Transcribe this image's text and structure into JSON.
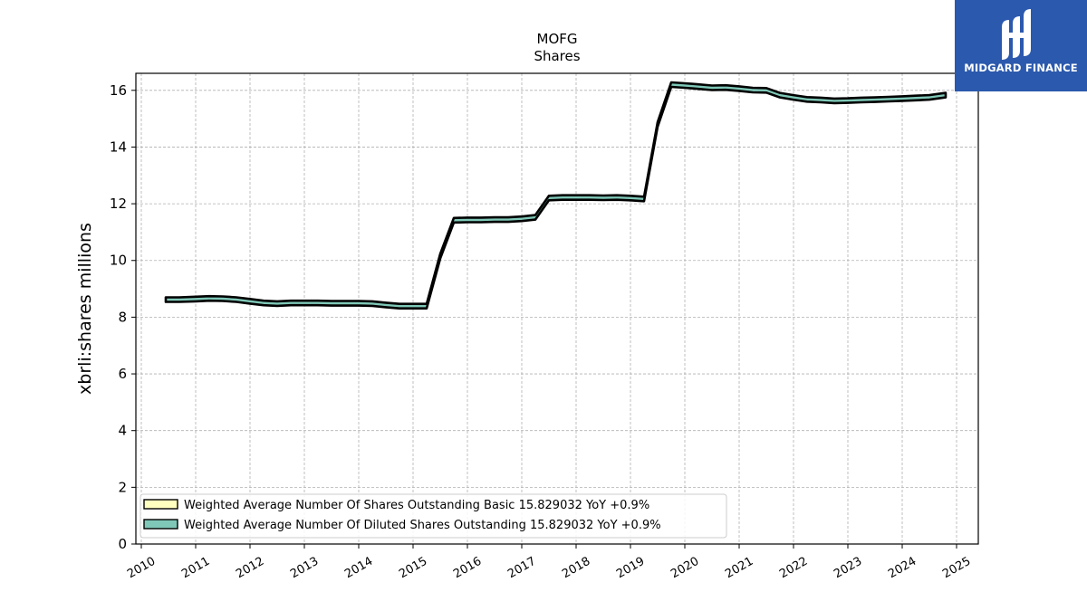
{
  "chart_data": {
    "type": "line",
    "title": "MOFG",
    "subtitle": "Shares",
    "ylabel": "xbrli:shares millions",
    "xlabel": "",
    "xlim": [
      2009.9,
      2025.4
    ],
    "ylim": [
      0,
      16.6
    ],
    "yticks": [
      0,
      2,
      4,
      6,
      8,
      10,
      12,
      14,
      16
    ],
    "xticks": [
      "2010",
      "2011",
      "2012",
      "2013",
      "2014",
      "2015",
      "2016",
      "2017",
      "2018",
      "2019",
      "2020",
      "2021",
      "2022",
      "2023",
      "2024",
      "2025"
    ],
    "grid": true,
    "legend_position": "lower-left",
    "series": [
      {
        "name": "Weighted Average Number Of Shares Outstanding Basic  15.829032 YoY +0.9%",
        "color": "#ffffc0",
        "x": [
          2010.45,
          2010.7,
          2011.0,
          2011.25,
          2011.5,
          2011.75,
          2012.0,
          2012.25,
          2012.5,
          2012.75,
          2013.0,
          2013.25,
          2013.5,
          2013.75,
          2014.0,
          2014.25,
          2014.5,
          2014.75,
          2015.0,
          2015.25,
          2015.5,
          2015.75,
          2016.0,
          2016.25,
          2016.5,
          2016.75,
          2017.0,
          2017.25,
          2017.5,
          2017.75,
          2018.0,
          2018.25,
          2018.5,
          2018.75,
          2019.0,
          2019.25,
          2019.5,
          2019.75,
          2020.0,
          2020.25,
          2020.5,
          2020.75,
          2021.0,
          2021.25,
          2021.5,
          2021.75,
          2022.0,
          2022.25,
          2022.5,
          2022.75,
          2023.0,
          2023.25,
          2023.5,
          2023.75,
          2024.0,
          2024.25,
          2024.5,
          2024.8
        ],
        "values": [
          8.62,
          8.62,
          8.64,
          8.66,
          8.65,
          8.62,
          8.56,
          8.5,
          8.48,
          8.5,
          8.5,
          8.5,
          8.49,
          8.49,
          8.49,
          8.48,
          8.43,
          8.39,
          8.39,
          8.39,
          10.15,
          11.42,
          11.43,
          11.43,
          11.44,
          11.44,
          11.47,
          11.52,
          12.2,
          12.22,
          12.22,
          12.22,
          12.21,
          12.22,
          12.2,
          12.17,
          14.8,
          16.2,
          16.17,
          16.13,
          16.09,
          16.1,
          16.06,
          16.01,
          16.0,
          15.83,
          15.75,
          15.68,
          15.66,
          15.63,
          15.64,
          15.66,
          15.67,
          15.69,
          15.71,
          15.73,
          15.75,
          15.83
        ]
      },
      {
        "name": "Weighted Average Number Of Diluted Shares Outstanding  15.829032 YoY +0.9%",
        "color": "#7fc8b8",
        "x": [
          2010.45,
          2010.7,
          2011.0,
          2011.25,
          2011.5,
          2011.75,
          2012.0,
          2012.25,
          2012.5,
          2012.75,
          2013.0,
          2013.25,
          2013.5,
          2013.75,
          2014.0,
          2014.25,
          2014.5,
          2014.75,
          2015.0,
          2015.25,
          2015.5,
          2015.75,
          2016.0,
          2016.25,
          2016.5,
          2016.75,
          2017.0,
          2017.25,
          2017.5,
          2017.75,
          2018.0,
          2018.25,
          2018.5,
          2018.75,
          2019.0,
          2019.25,
          2019.5,
          2019.75,
          2020.0,
          2020.25,
          2020.5,
          2020.75,
          2021.0,
          2021.25,
          2021.5,
          2021.75,
          2022.0,
          2022.25,
          2022.5,
          2022.75,
          2023.0,
          2023.25,
          2023.5,
          2023.75,
          2024.0,
          2024.25,
          2024.5,
          2024.8
        ],
        "values": [
          8.62,
          8.62,
          8.64,
          8.66,
          8.65,
          8.62,
          8.56,
          8.5,
          8.48,
          8.5,
          8.5,
          8.5,
          8.49,
          8.49,
          8.49,
          8.48,
          8.43,
          8.39,
          8.39,
          8.39,
          10.15,
          11.42,
          11.43,
          11.43,
          11.44,
          11.44,
          11.47,
          11.52,
          12.2,
          12.22,
          12.22,
          12.22,
          12.21,
          12.22,
          12.2,
          12.17,
          14.8,
          16.2,
          16.17,
          16.13,
          16.09,
          16.1,
          16.06,
          16.01,
          16.0,
          15.83,
          15.75,
          15.68,
          15.66,
          15.63,
          15.64,
          15.66,
          15.67,
          15.69,
          15.71,
          15.73,
          15.75,
          15.83
        ]
      }
    ]
  },
  "logo": {
    "text": "MIDGARD FINANCE",
    "background": "#2b59ad",
    "icon": "midgard-finance-logo-icon"
  }
}
